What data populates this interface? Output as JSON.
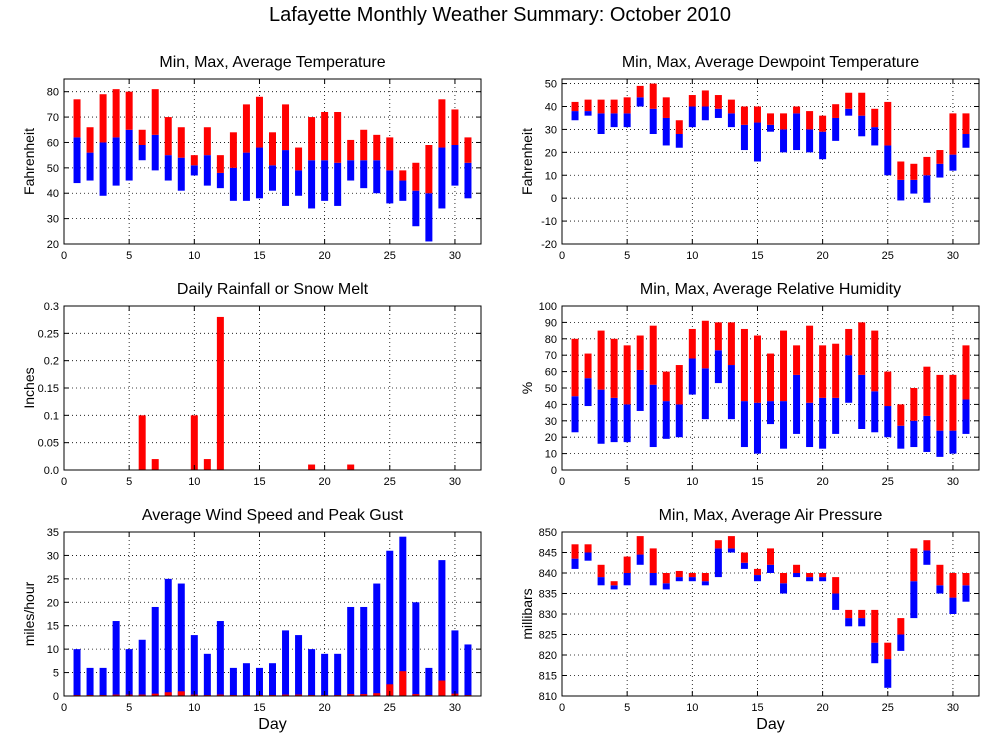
{
  "title": "Lafayette Monthly Weather Summary: October 2010",
  "colors": {
    "min_bar": "#0000ff",
    "max_bar": "#ff0000",
    "grid": "#000000"
  },
  "chart_data": [
    {
      "id": "temperature",
      "type": "bar",
      "title": "Min, Max, Average Temperature",
      "xlabel": "",
      "ylabel": "Fahrenheit",
      "xlim": [
        0,
        32
      ],
      "ylim": [
        20,
        85
      ],
      "xticks": [
        0,
        5,
        10,
        15,
        20,
        25,
        30
      ],
      "yticks": [
        20,
        30,
        40,
        50,
        60,
        70,
        80
      ],
      "grid": true,
      "style": "range",
      "x": [
        1,
        2,
        3,
        4,
        5,
        6,
        7,
        8,
        9,
        10,
        11,
        12,
        13,
        14,
        15,
        16,
        17,
        18,
        19,
        20,
        21,
        22,
        23,
        24,
        25,
        26,
        27,
        28,
        29,
        30,
        31
      ],
      "series": [
        {
          "key": "min",
          "values": [
            44,
            45,
            39,
            43,
            45,
            53,
            49,
            45,
            41,
            47,
            43,
            42,
            37,
            37,
            38,
            41,
            35,
            39,
            34,
            37,
            35,
            45,
            42,
            40,
            36,
            37,
            27,
            21,
            34,
            43,
            38
          ]
        },
        {
          "key": "avg",
          "values": [
            62,
            56,
            60,
            62,
            65,
            59,
            63,
            55,
            54,
            51,
            55,
            48,
            50,
            56,
            58,
            51,
            57,
            49,
            53,
            53,
            52,
            53,
            53,
            53,
            49,
            45,
            41,
            40,
            58,
            59,
            52
          ]
        },
        {
          "key": "max",
          "values": [
            77,
            66,
            79,
            81,
            80,
            65,
            81,
            70,
            66,
            55,
            66,
            55,
            64,
            75,
            78,
            64,
            75,
            58,
            70,
            72,
            72,
            61,
            65,
            63,
            62,
            49,
            52,
            59,
            77,
            73,
            62
          ]
        }
      ]
    },
    {
      "id": "dewpoint",
      "type": "bar",
      "title": "Min, Max, Average Dewpoint Temperature",
      "xlabel": "",
      "ylabel": "Fahrenheit",
      "xlim": [
        0,
        32
      ],
      "ylim": [
        -20,
        52
      ],
      "xticks": [
        0,
        5,
        10,
        15,
        20,
        25,
        30
      ],
      "yticks": [
        -20,
        -10,
        0,
        10,
        20,
        30,
        40,
        50
      ],
      "grid": true,
      "style": "range",
      "x": [
        1,
        2,
        3,
        4,
        5,
        6,
        7,
        8,
        9,
        10,
        11,
        12,
        13,
        14,
        15,
        16,
        17,
        18,
        19,
        20,
        21,
        22,
        23,
        24,
        25,
        26,
        27,
        28,
        29,
        30,
        31
      ],
      "series": [
        {
          "key": "min",
          "values": [
            34,
            36,
            28,
            31,
            31,
            40,
            28,
            23,
            22,
            31,
            34,
            35,
            31,
            21,
            16,
            29,
            20,
            21,
            20,
            17,
            25,
            36,
            27,
            23,
            10,
            -1,
            2,
            -2,
            9,
            12,
            22
          ]
        },
        {
          "key": "avg",
          "values": [
            38,
            38,
            37,
            37,
            37,
            44,
            39,
            35,
            28,
            40,
            40,
            39,
            37,
            32,
            33,
            32,
            30,
            37,
            30,
            29,
            35,
            39,
            36,
            31,
            23,
            8,
            8,
            10,
            15,
            19,
            28
          ]
        },
        {
          "key": "max",
          "values": [
            42,
            43,
            43,
            43,
            44,
            49,
            50,
            44,
            34,
            45,
            47,
            45,
            43,
            40,
            40,
            37,
            37,
            40,
            38,
            36,
            41,
            46,
            46,
            39,
            42,
            16,
            15,
            18,
            21,
            37,
            37
          ]
        }
      ]
    },
    {
      "id": "rainfall",
      "type": "bar",
      "title": "Daily Rainfall or Snow Melt",
      "xlabel": "",
      "ylabel": "Inches",
      "xlim": [
        0,
        32
      ],
      "ylim": [
        0,
        0.3
      ],
      "xticks": [
        0,
        5,
        10,
        15,
        20,
        25,
        30
      ],
      "yticks": [
        0,
        0.05,
        0.1,
        0.15,
        0.2,
        0.25,
        0.3
      ],
      "ytick_labels": [
        "0.0",
        "0.05",
        "0.1",
        "0.15",
        "0.2",
        "0.25",
        "0.3"
      ],
      "grid": true,
      "style": "simple",
      "x": [
        1,
        2,
        3,
        4,
        5,
        6,
        7,
        8,
        9,
        10,
        11,
        12,
        13,
        14,
        15,
        16,
        17,
        18,
        19,
        20,
        21,
        22,
        23,
        24,
        25,
        26,
        27,
        28,
        29,
        30,
        31
      ],
      "series": [
        {
          "key": "rain",
          "values": [
            0,
            0,
            0,
            0,
            0,
            0.1,
            0.02,
            0,
            0,
            0.1,
            0.02,
            0.28,
            0,
            0,
            0,
            0,
            0,
            0,
            0.01,
            0,
            0,
            0.01,
            0,
            0,
            0,
            0,
            0,
            0,
            0,
            0,
            0
          ]
        }
      ]
    },
    {
      "id": "humidity",
      "type": "bar",
      "title": "Min, Max, Average Relative Humidity",
      "xlabel": "",
      "ylabel": "%",
      "xlim": [
        0,
        32
      ],
      "ylim": [
        0,
        100
      ],
      "xticks": [
        0,
        5,
        10,
        15,
        20,
        25,
        30
      ],
      "yticks": [
        0,
        10,
        20,
        30,
        40,
        50,
        60,
        70,
        80,
        90,
        100
      ],
      "grid": true,
      "style": "range",
      "x": [
        1,
        2,
        3,
        4,
        5,
        6,
        7,
        8,
        9,
        10,
        11,
        12,
        13,
        14,
        15,
        16,
        17,
        18,
        19,
        20,
        21,
        22,
        23,
        24,
        25,
        26,
        27,
        28,
        29,
        30,
        31
      ],
      "series": [
        {
          "key": "min",
          "values": [
            23,
            39,
            16,
            17,
            17,
            36,
            14,
            19,
            20,
            46,
            31,
            53,
            31,
            14,
            10,
            28,
            13,
            22,
            14,
            13,
            22,
            41,
            25,
            23,
            20,
            13,
            14,
            11,
            8,
            10,
            22
          ]
        },
        {
          "key": "avg",
          "values": [
            45,
            56,
            49,
            44,
            40,
            61,
            52,
            42,
            40,
            68,
            62,
            73,
            64,
            42,
            41,
            42,
            42,
            58,
            41,
            44,
            44,
            70,
            58,
            48,
            39,
            27,
            30,
            33,
            24,
            24,
            43
          ]
        },
        {
          "key": "max",
          "values": [
            80,
            71,
            85,
            80,
            76,
            82,
            88,
            60,
            64,
            86,
            91,
            90,
            90,
            86,
            82,
            71,
            85,
            76,
            88,
            76,
            77,
            86,
            90,
            85,
            60,
            40,
            50,
            63,
            58,
            58,
            76
          ]
        }
      ]
    },
    {
      "id": "wind",
      "type": "bar",
      "title": "Average Wind Speed and Peak Gust",
      "xlabel": "Day",
      "ylabel": "miles/hour",
      "xlim": [
        0,
        32
      ],
      "ylim": [
        0,
        35
      ],
      "xticks": [
        0,
        5,
        10,
        15,
        20,
        25,
        30
      ],
      "yticks": [
        0,
        5,
        10,
        15,
        20,
        25,
        30,
        35
      ],
      "grid": true,
      "style": "overlay",
      "x": [
        1,
        2,
        3,
        4,
        5,
        6,
        7,
        8,
        9,
        10,
        11,
        12,
        13,
        14,
        15,
        16,
        17,
        18,
        19,
        20,
        21,
        22,
        23,
        24,
        25,
        26,
        27,
        28,
        29,
        30,
        31
      ],
      "series": [
        {
          "key": "gust",
          "values": [
            10,
            6,
            6,
            16,
            10,
            12,
            19,
            25,
            24,
            13,
            9,
            16,
            6,
            7,
            6,
            7,
            14,
            13,
            10,
            9,
            9,
            19,
            19,
            24,
            31,
            34,
            20,
            6,
            29,
            14,
            11
          ]
        },
        {
          "key": "avg",
          "values": [
            0.2,
            0.2,
            0.2,
            0.3,
            0.3,
            0.3,
            0.5,
            0.8,
            1,
            0.3,
            0.2,
            0.3,
            0.2,
            0.2,
            0.2,
            0.2,
            0.3,
            0.3,
            0.2,
            0.2,
            0.2,
            0.4,
            0.4,
            0.6,
            2.5,
            5.3,
            0.4,
            0.2,
            3.3,
            0.5,
            0.2
          ]
        }
      ]
    },
    {
      "id": "pressure",
      "type": "bar",
      "title": "Min, Max, Average Air Pressure",
      "xlabel": "Day",
      "ylabel": "millibars",
      "xlim": [
        0,
        32
      ],
      "ylim": [
        810,
        850
      ],
      "xticks": [
        0,
        5,
        10,
        15,
        20,
        25,
        30
      ],
      "yticks": [
        810,
        815,
        820,
        825,
        830,
        835,
        840,
        845,
        850
      ],
      "grid": true,
      "style": "range",
      "x": [
        1,
        2,
        3,
        4,
        5,
        6,
        7,
        8,
        9,
        10,
        11,
        12,
        13,
        14,
        15,
        16,
        17,
        18,
        19,
        20,
        21,
        22,
        23,
        24,
        25,
        26,
        27,
        28,
        29,
        30,
        31
      ],
      "series": [
        {
          "key": "min",
          "values": [
            841,
            843,
            837,
            836,
            837,
            842,
            837,
            836,
            838,
            838,
            837,
            839,
            845,
            841,
            838,
            840,
            835,
            839,
            838,
            838,
            831,
            827,
            827,
            818,
            812,
            821,
            829,
            842,
            835,
            830,
            833
          ]
        },
        {
          "key": "avg",
          "values": [
            843.5,
            845,
            839,
            837,
            840,
            844.5,
            840,
            837.5,
            839,
            839,
            838,
            846,
            846,
            842.5,
            839.5,
            842,
            837.5,
            840,
            839,
            839,
            835,
            829,
            829,
            823,
            819,
            825,
            838,
            845.5,
            837,
            834,
            837
          ]
        },
        {
          "key": "max",
          "values": [
            847,
            847,
            842,
            838,
            844,
            849,
            846,
            840,
            840.5,
            840,
            840,
            848,
            849,
            845,
            841,
            846,
            840,
            842,
            840,
            840,
            839,
            831,
            831,
            831,
            823,
            829,
            846,
            848,
            842,
            840,
            840
          ]
        }
      ]
    }
  ]
}
